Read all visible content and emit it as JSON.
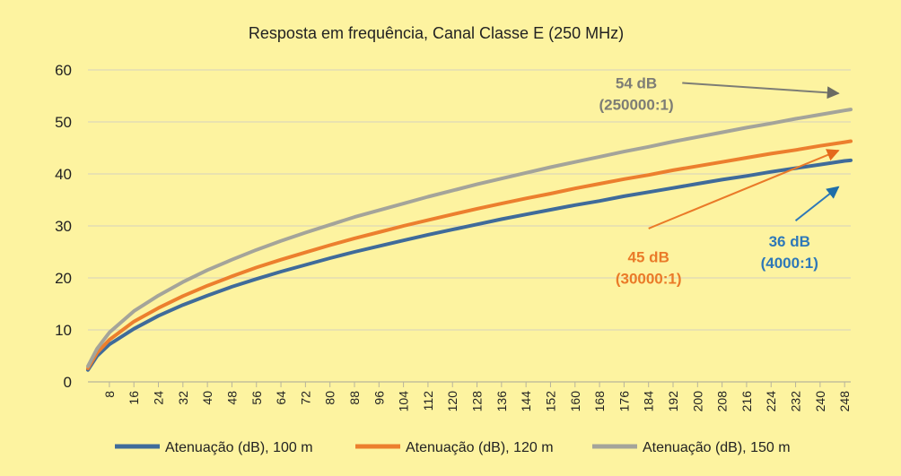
{
  "chart_data": {
    "type": "line",
    "title": "Resposta em frequência, Canal Classe E (250 MHz)",
    "xlabel": "",
    "ylabel": "",
    "ylim": [
      0,
      60
    ],
    "yticks": [
      0,
      10,
      20,
      30,
      40,
      50,
      60
    ],
    "xlim": [
      1,
      250
    ],
    "xticks": [
      8,
      16,
      24,
      32,
      40,
      48,
      56,
      64,
      72,
      80,
      88,
      96,
      104,
      112,
      120,
      128,
      136,
      144,
      152,
      160,
      168,
      176,
      184,
      192,
      200,
      208,
      216,
      224,
      232,
      240,
      248
    ],
    "grid": true,
    "legend_position": "bottom",
    "x": [
      1,
      4,
      8,
      16,
      24,
      32,
      40,
      48,
      56,
      64,
      72,
      80,
      88,
      96,
      104,
      112,
      120,
      128,
      136,
      144,
      152,
      160,
      168,
      176,
      184,
      192,
      200,
      208,
      216,
      224,
      232,
      240,
      248,
      250
    ],
    "series": [
      {
        "name": "Atenuação (dB), 100 m",
        "color": "#3f6b9a",
        "values": [
          2.3,
          5.0,
          7.2,
          10.2,
          12.7,
          14.8,
          16.6,
          18.3,
          19.8,
          21.2,
          22.5,
          23.8,
          25.0,
          26.1,
          27.2,
          28.3,
          29.3,
          30.3,
          31.3,
          32.2,
          33.1,
          34.0,
          34.8,
          35.7,
          36.5,
          37.3,
          38.1,
          38.9,
          39.6,
          40.4,
          41.1,
          41.8,
          42.5,
          42.6
        ]
      },
      {
        "name": "Atenuação (dB), 120 m",
        "color": "#ec7f2e",
        "values": [
          2.6,
          5.6,
          8.1,
          11.6,
          14.2,
          16.5,
          18.5,
          20.3,
          22.0,
          23.5,
          24.9,
          26.3,
          27.6,
          28.8,
          30.0,
          31.1,
          32.2,
          33.3,
          34.3,
          35.3,
          36.2,
          37.2,
          38.1,
          39.0,
          39.8,
          40.7,
          41.5,
          42.3,
          43.1,
          43.9,
          44.6,
          45.4,
          46.1,
          46.3
        ]
      },
      {
        "name": "Atenuação (dB), 150 m",
        "color": "#a4a49a",
        "values": [
          3.0,
          6.4,
          9.5,
          13.6,
          16.6,
          19.2,
          21.5,
          23.5,
          25.4,
          27.1,
          28.7,
          30.2,
          31.7,
          33.0,
          34.3,
          35.6,
          36.8,
          38.0,
          39.1,
          40.2,
          41.3,
          42.3,
          43.3,
          44.3,
          45.2,
          46.2,
          47.1,
          48.0,
          48.9,
          49.7,
          50.6,
          51.4,
          52.2,
          52.4
        ]
      }
    ],
    "annotations": [
      {
        "line1": "54 dB",
        "line2": "(250000:1)",
        "color": "#7d7d75",
        "text_x": 180,
        "text_y": 56.5,
        "arrow_from": [
          195,
          57.5
        ],
        "arrow_to": [
          246,
          55.5
        ]
      },
      {
        "line1": "45 dB",
        "line2": "(30000:1)",
        "color": "#ea7a28",
        "text_x": 184,
        "text_y": 23,
        "arrow_from": [
          184,
          29.5
        ],
        "arrow_to": [
          246,
          44.5
        ]
      },
      {
        "line1": "36 dB",
        "line2": "(4000:1)",
        "color": "#2e78b8",
        "text_x": 230,
        "text_y": 26,
        "arrow_from": [
          232,
          31
        ],
        "arrow_to": [
          246,
          37.5
        ]
      }
    ]
  }
}
